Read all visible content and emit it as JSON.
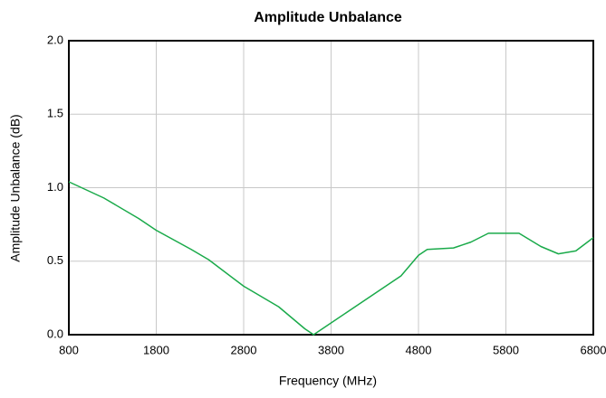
{
  "chart_data": {
    "type": "line",
    "title": "Amplitude Unbalance",
    "x_label": "Frequency (MHz)",
    "y_label": "Amplitude Unbalance (dB)",
    "x": [
      800,
      1200,
      1600,
      1800,
      2200,
      2400,
      2800,
      3200,
      3500,
      3600,
      3700,
      4000,
      4400,
      4600,
      4800,
      4900,
      5200,
      5400,
      5600,
      5800,
      5950,
      6200,
      6400,
      6600,
      6800
    ],
    "series": [
      {
        "name": "Amplitude Unbalance",
        "color": "#1aaa4a",
        "values": [
          1.04,
          0.93,
          0.79,
          0.71,
          0.58,
          0.51,
          0.33,
          0.19,
          0.04,
          0.0,
          0.04,
          0.16,
          0.32,
          0.4,
          0.54,
          0.58,
          0.59,
          0.63,
          0.69,
          0.69,
          0.69,
          0.6,
          0.55,
          0.57,
          0.66
        ]
      }
    ],
    "xlim": [
      800,
      6800
    ],
    "xticks": [
      800,
      1800,
      2800,
      3800,
      4800,
      5800,
      6800
    ],
    "ylim": [
      0,
      2
    ],
    "yticks": [
      {
        "value": 0,
        "label": "0.0"
      },
      {
        "value": 0.5,
        "label": "0.5"
      },
      {
        "value": 1,
        "label": "1.0"
      },
      {
        "value": 1.5,
        "label": "1.5"
      },
      {
        "value": 2,
        "label": "2.0"
      }
    ],
    "grid": true
  }
}
